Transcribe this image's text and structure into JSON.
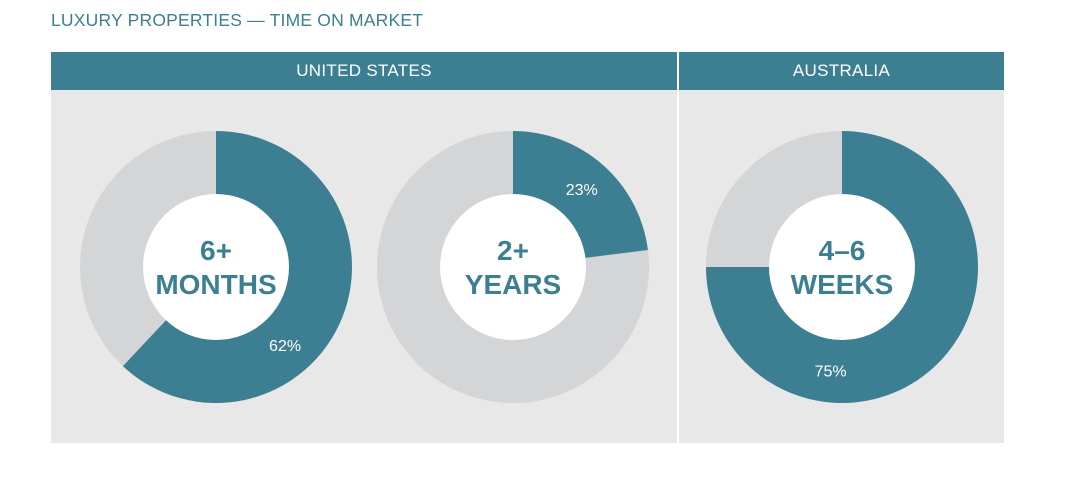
{
  "title": "LUXURY PROPERTIES — TIME ON MARKET",
  "panels": [
    {
      "label": "UNITED STATES"
    },
    {
      "label": "AUSTRALIA"
    }
  ],
  "colors": {
    "accent": "#3c7f92",
    "remainder": "#d4d5d6",
    "background": "#e8e8e8",
    "header_text": "#ffffff"
  },
  "chart_data": [
    {
      "type": "pie",
      "group": "UNITED STATES",
      "center_label": [
        "6+",
        "MONTHS"
      ],
      "value_label": "62%",
      "values": [
        62,
        38
      ]
    },
    {
      "type": "pie",
      "group": "UNITED STATES",
      "center_label": [
        "2+",
        "YEARS"
      ],
      "value_label": "23%",
      "values": [
        23,
        77
      ]
    },
    {
      "type": "pie",
      "group": "AUSTRALIA",
      "center_label": [
        "4–6",
        "WEEKS"
      ],
      "value_label": "75%",
      "values": [
        75,
        25
      ]
    }
  ]
}
